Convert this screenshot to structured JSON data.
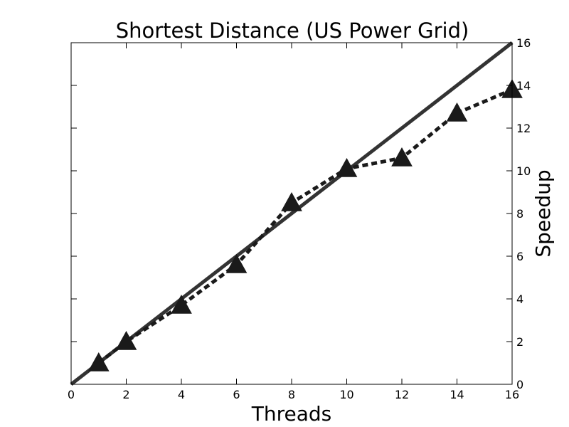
{
  "chart_data": {
    "type": "line",
    "title": "Shortest Distance (US Power Grid)",
    "xlabel": "Threads",
    "ylabel": "Speedup",
    "xlim": [
      0,
      16
    ],
    "ylim": [
      0,
      16
    ],
    "x_ticks": [
      0,
      2,
      4,
      6,
      8,
      10,
      12,
      14,
      16
    ],
    "y_ticks": [
      0,
      2,
      4,
      6,
      8,
      10,
      12,
      14,
      16
    ],
    "y_axis_side": "right",
    "grid": false,
    "legend": "none",
    "series": [
      {
        "style": "solid",
        "marker": "none",
        "color": "#333333",
        "x": [
          0,
          16
        ],
        "y": [
          0,
          16
        ]
      },
      {
        "style": "dashed",
        "marker": "triangle",
        "color": "#1a1a1a",
        "x": [
          1,
          2,
          4,
          6,
          8,
          10,
          12,
          14,
          16
        ],
        "y": [
          1.0,
          2.0,
          3.7,
          5.6,
          8.5,
          10.1,
          10.6,
          12.7,
          13.8
        ]
      }
    ]
  }
}
